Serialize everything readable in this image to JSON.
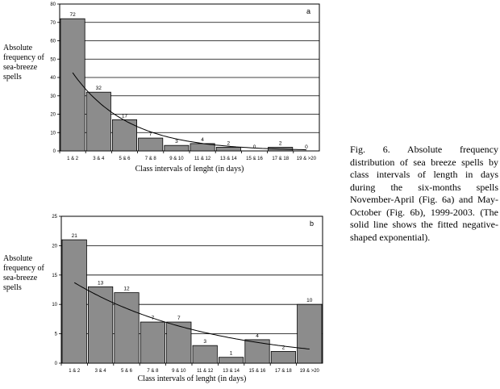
{
  "chart_data": [
    {
      "type": "bar",
      "panel_label": "a",
      "ylabel_lines": [
        "Absolute",
        "frequency of",
        "sea-breeze",
        "spells"
      ],
      "xlabel": "Class intervals of lenght (in days)",
      "categories": [
        "1 & 2",
        "3 & 4",
        "5 & 6",
        "7 & 8",
        "9 & 10",
        "11 & 12",
        "13 & 14",
        "15 & 16",
        "17 & 18",
        "19 & >20"
      ],
      "values": [
        72,
        32,
        17,
        7,
        3,
        4,
        2,
        0,
        2,
        0
      ],
      "data_labels": [
        "72",
        "32",
        "17",
        "7",
        "3",
        "4",
        "2",
        "0",
        "2",
        "0"
      ],
      "ylim": [
        0,
        80
      ],
      "yticks": [
        0,
        10,
        20,
        30,
        40,
        50,
        60,
        70,
        80
      ],
      "ytick_labels": [
        "0",
        "10",
        "20",
        "30",
        "40",
        "50",
        "60",
        "70",
        "80"
      ],
      "grid": true,
      "fit_curve": "negative-shaped exponential"
    },
    {
      "type": "bar",
      "panel_label": "b",
      "ylabel_lines": [
        "Absolute",
        "frequency of",
        "sea-breeze",
        "spells"
      ],
      "xlabel": "Class intervals of lenght (in days)",
      "categories": [
        "1 & 2",
        "3 & 4",
        "5 & 6",
        "7 & 8",
        "9 & 10",
        "11 & 12",
        "13 & 14",
        "15 & 16",
        "17 & 18",
        "19 & >20"
      ],
      "values": [
        21,
        13,
        12,
        7,
        7,
        3,
        1,
        4,
        2,
        10
      ],
      "data_labels": [
        "21",
        "13",
        "12",
        "7",
        "7",
        "3",
        "1",
        "4",
        "2",
        "10"
      ],
      "ylim": [
        0,
        25
      ],
      "yticks": [
        0,
        5,
        10,
        15,
        20,
        25
      ],
      "ytick_labels": [
        "0",
        "5",
        "10",
        "15",
        "20",
        "25"
      ],
      "grid": true,
      "fit_curve": "negative-shaped exponential"
    }
  ],
  "colors": {
    "bar": "#8c8c8c",
    "bar_edge": "#000000",
    "grid": "#000000",
    "curve": "#000000"
  },
  "caption": "Fig. 6. Absolute frequency distribution of sea breeze spells by class intervals of length in days during the six-months spells November-April (Fig. 6a) and May-October (Fig. 6b), 1999-2003. (The solid line shows the fitted negative-shaped exponential)."
}
